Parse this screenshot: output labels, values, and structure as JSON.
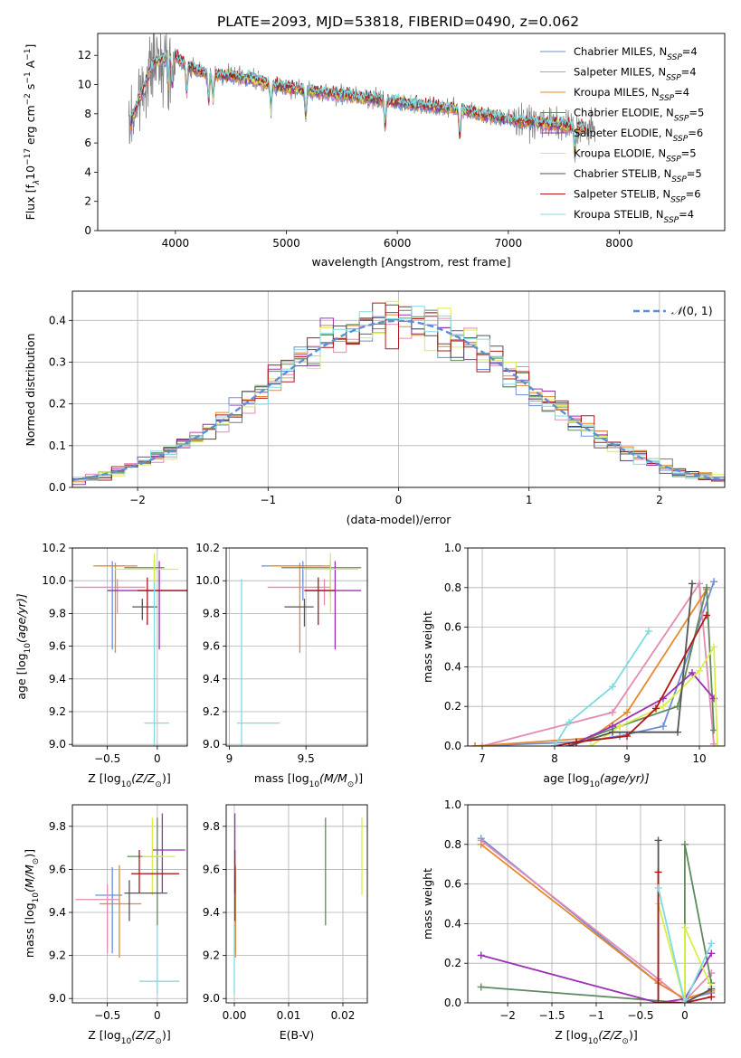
{
  "figure": {
    "title": "PLATE=2093, MJD=53818, FIBERID=0490, z=0.062"
  },
  "colors": {
    "Chabrier MILES": "#6a8fd8",
    "Salpeter MILES": "#e48ab4",
    "Kroupa MILES": "#e8882a",
    "Chabrier ELODIE": "#5f8a5f",
    "Salpeter ELODIE": "#9b30b5",
    "Kroupa ELODIE": "#d9ee4c",
    "Chabrier STELIB": "#555555",
    "Salpeter STELIB": "#b01818",
    "Kroupa STELIB": "#7fdbe0",
    "data": "#808080",
    "normal": "#5b8fd6"
  },
  "chart_data": [
    {
      "id": "spectrum",
      "type": "line",
      "xlabel": "wavelength [Angstrom, rest frame]",
      "ylabel_parts": [
        "Flux [f",
        "λ",
        "10",
        "−17",
        " erg cm",
        "−2",
        " s",
        "−1",
        " A",
        "−1",
        "]"
      ],
      "xlim": [
        3300,
        8950
      ],
      "ylim": [
        0,
        13.5
      ],
      "xticks": [
        4000,
        5000,
        6000,
        7000,
        8000
      ],
      "yticks": [
        0,
        2,
        4,
        6,
        8,
        10,
        12
      ],
      "grid": false,
      "legend": "top-right",
      "continuum": [
        [
          3600,
          7.5
        ],
        [
          3700,
          9.5
        ],
        [
          3800,
          11.5
        ],
        [
          3900,
          11.8
        ],
        [
          4000,
          12.0
        ],
        [
          4100,
          11.3
        ],
        [
          4300,
          10.7
        ],
        [
          4500,
          10.6
        ],
        [
          4700,
          10.4
        ],
        [
          4860,
          10.0
        ],
        [
          5000,
          9.8
        ],
        [
          5200,
          9.6
        ],
        [
          5500,
          9.3
        ],
        [
          5800,
          9.0
        ],
        [
          6200,
          8.6
        ],
        [
          6560,
          8.3
        ],
        [
          7000,
          7.6
        ],
        [
          7400,
          7.3
        ],
        [
          7700,
          7.0
        ]
      ],
      "series": [
        {
          "name": "Chabrier MILES",
          "nssp": "4"
        },
        {
          "name": "Salpeter MILES",
          "nssp": "4"
        },
        {
          "name": "Kroupa MILES",
          "nssp": "4"
        },
        {
          "name": "Chabrier ELODIE",
          "nssp": "5"
        },
        {
          "name": "Salpeter ELODIE",
          "nssp": "6"
        },
        {
          "name": "Kroupa ELODIE",
          "nssp": "5"
        },
        {
          "name": "Chabrier STELIB",
          "nssp": "5"
        },
        {
          "name": "Salpeter STELIB",
          "nssp": "6"
        },
        {
          "name": "Kroupa STELIB",
          "nssp": "4"
        }
      ]
    },
    {
      "id": "residuals",
      "type": "histogram",
      "xlabel": "(data-model)/error",
      "ylabel": "Normed distribution",
      "xlim": [
        -2.5,
        2.5
      ],
      "ylim": [
        0,
        0.47
      ],
      "xticks": [
        -2,
        -1,
        0,
        1,
        2
      ],
      "yticks": [
        0.0,
        0.1,
        0.2,
        0.3,
        0.4
      ],
      "grid": true,
      "legend": "top-right",
      "normal_label_parts": [
        "𝒩",
        "(0, 1)"
      ]
    },
    {
      "id": "age-vs-Z",
      "type": "errorbar",
      "xlabel_parts": [
        "Z [log",
        "10",
        "(Z/Z",
        "⊙",
        ")]"
      ],
      "ylabel_parts": [
        "age  [log",
        "10",
        "(age/yr)]"
      ],
      "xlim": [
        -0.85,
        0.3
      ],
      "ylim": [
        8.99,
        10.2
      ],
      "xticks": [
        -0.5,
        0.0
      ],
      "yticks": [
        9.0,
        9.2,
        9.4,
        9.6,
        9.8,
        10.0,
        10.2
      ],
      "grid": true,
      "points": [
        {
          "name": "Chabrier MILES",
          "x": -0.45,
          "xerr": [
            0.17,
            0.12
          ],
          "y": 10.09,
          "yerr": [
            0.51,
            0.03
          ]
        },
        {
          "name": "Salpeter MILES",
          "x": -0.4,
          "xerr": [
            0.43,
            0.28
          ],
          "y": 9.96,
          "yerr": [
            0.16,
            0.05
          ]
        },
        {
          "name": "Kroupa MILES",
          "x": -0.42,
          "xerr": [
            0.22,
            0.22
          ],
          "y": 10.09,
          "yerr": [
            0.53,
            0.02
          ]
        },
        {
          "name": "Chabrier ELODIE",
          "x": -0.03,
          "xerr": [
            0.3,
            0.1
          ],
          "y": 10.08,
          "yerr": [
            0.14,
            0.05
          ]
        },
        {
          "name": "Salpeter ELODIE",
          "x": 0.02,
          "xerr": [
            0.52,
            0.28
          ],
          "y": 9.94,
          "yerr": [
            0.36,
            0.18
          ]
        },
        {
          "name": "Kroupa ELODIE",
          "x": -0.03,
          "xerr": [
            0.4,
            0.24
          ],
          "y": 10.07,
          "yerr": [
            0.27,
            0.1
          ]
        },
        {
          "name": "Chabrier STELIB",
          "x": -0.15,
          "xerr": [
            0.1,
            0.15
          ],
          "y": 9.84,
          "yerr": [
            0.08,
            0.05
          ]
        },
        {
          "name": "Salpeter STELIB",
          "x": -0.1,
          "xerr": [
            0.1,
            0.4
          ],
          "y": 9.94,
          "yerr": [
            0.21,
            0.08
          ]
        },
        {
          "name": "Kroupa STELIB",
          "x": -0.03,
          "xerr": [
            0.1,
            0.15
          ],
          "y": 9.13,
          "yerr": [
            0.14,
            0.86
          ]
        }
      ]
    },
    {
      "id": "age-vs-mass",
      "type": "errorbar",
      "xlabel_parts": [
        "mass [log",
        "10",
        "(M/M",
        "⊙",
        ")]"
      ],
      "ylabel_parts": [],
      "xlim": [
        8.98,
        9.9
      ],
      "ylim": [
        8.99,
        10.2
      ],
      "xticks": [
        9.0,
        9.5
      ],
      "yticks": [
        9.0,
        9.2,
        9.4,
        9.6,
        9.8,
        10.0,
        10.2
      ],
      "grid": true,
      "points": [
        {
          "name": "Chabrier MILES",
          "x": 9.48,
          "xerr": [
            0.27,
            0.13
          ],
          "y": 10.09,
          "yerr": [
            0.21,
            0.03
          ]
        },
        {
          "name": "Salpeter MILES",
          "x": 9.62,
          "xerr": [
            0.37,
            0.04
          ],
          "y": 9.96,
          "yerr": [
            0.11,
            0.05
          ]
        },
        {
          "name": "Kroupa MILES",
          "x": 9.46,
          "xerr": [
            0.2,
            0.2
          ],
          "y": 10.09,
          "yerr": [
            0.53,
            0.02
          ]
        },
        {
          "name": "Chabrier ELODIE",
          "x": 9.66,
          "xerr": [
            0.32,
            0.2
          ],
          "y": 10.08,
          "yerr": [
            0.18,
            0.05
          ]
        },
        {
          "name": "Salpeter ELODIE",
          "x": 9.69,
          "xerr": [
            0.2,
            0.17
          ],
          "y": 9.94,
          "yerr": [
            0.36,
            0.18
          ]
        },
        {
          "name": "Kroupa ELODIE",
          "x": 9.66,
          "xerr": [
            0.18,
            0.18
          ],
          "y": 10.07,
          "yerr": [
            0.27,
            0.1
          ]
        },
        {
          "name": "Chabrier STELIB",
          "x": 9.49,
          "xerr": [
            0.13,
            0.06
          ],
          "y": 9.84,
          "yerr": [
            0.12,
            0.05
          ]
        },
        {
          "name": "Salpeter STELIB",
          "x": 9.58,
          "xerr": [
            0.09,
            0.11
          ],
          "y": 9.94,
          "yerr": [
            0.21,
            0.08
          ]
        },
        {
          "name": "Kroupa STELIB",
          "x": 9.08,
          "xerr": [
            0.03,
            0.25
          ],
          "y": 9.13,
          "yerr": [
            0.14,
            0.88
          ]
        }
      ]
    },
    {
      "id": "mass-weight-vs-age",
      "type": "line",
      "xlabel_parts": [
        "age  [log",
        "10",
        "(age/yr)]"
      ],
      "ylabel": "mass weight",
      "xlim": [
        6.8,
        10.35
      ],
      "ylim": [
        0,
        1
      ],
      "xticks": [
        7,
        8,
        9,
        10
      ],
      "yticks": [
        0.0,
        0.2,
        0.4,
        0.6,
        0.8,
        1.0
      ],
      "grid": true,
      "series": [
        {
          "name": "Chabrier MILES",
          "x": [
            6.9,
            8.3,
            8.9,
            9.5,
            10.2
          ],
          "y": [
            0.0,
            0.02,
            0.05,
            0.1,
            0.83
          ]
        },
        {
          "name": "Salpeter MILES",
          "x": [
            7.0,
            8.8,
            10.0,
            10.2
          ],
          "y": [
            0.0,
            0.17,
            0.82,
            0.01
          ]
        },
        {
          "name": "Kroupa MILES",
          "x": [
            6.9,
            8.5,
            9.0,
            10.1
          ],
          "y": [
            0.0,
            0.04,
            0.17,
            0.79
          ]
        },
        {
          "name": "Chabrier ELODIE",
          "x": [
            8.3,
            8.9,
            9.7,
            10.1,
            10.2
          ],
          "y": [
            0.02,
            0.1,
            0.2,
            0.8,
            0.08
          ]
        },
        {
          "name": "Salpeter ELODIE",
          "x": [
            8.2,
            8.8,
            9.5,
            9.9,
            10.2
          ],
          "y": [
            0.0,
            0.1,
            0.24,
            0.37,
            0.24
          ]
        },
        {
          "name": "Kroupa ELODIE",
          "x": [
            8.5,
            8.9,
            9.5,
            10.0,
            10.2,
            10.25
          ],
          "y": [
            0.0,
            0.1,
            0.2,
            0.38,
            0.5,
            0.0
          ]
        },
        {
          "name": "Chabrier STELIB",
          "x": [
            8.2,
            8.8,
            9.7,
            9.9
          ],
          "y": [
            0.0,
            0.07,
            0.07,
            0.82
          ]
        },
        {
          "name": "Salpeter STELIB",
          "x": [
            8.0,
            8.3,
            9.0,
            9.4,
            10.1
          ],
          "y": [
            0.0,
            0.02,
            0.05,
            0.19,
            0.66
          ]
        },
        {
          "name": "Kroupa STELIB",
          "x": [
            8.0,
            8.2,
            8.8,
            9.3
          ],
          "y": [
            0.0,
            0.12,
            0.3,
            0.58
          ]
        }
      ]
    },
    {
      "id": "mass-vs-Z",
      "type": "errorbar",
      "xlabel_parts": [
        "Z [log",
        "10",
        "(Z/Z",
        "⊙",
        ")]"
      ],
      "ylabel_parts": [
        "mass [log",
        "10",
        "(M/M",
        "⊙",
        ")]"
      ],
      "xlim": [
        -0.85,
        0.3
      ],
      "ylim": [
        8.98,
        9.9
      ],
      "xticks": [
        -0.5,
        0.0
      ],
      "yticks": [
        9.0,
        9.2,
        9.4,
        9.6,
        9.8
      ],
      "grid": true,
      "points": [
        {
          "name": "Chabrier MILES",
          "x": -0.45,
          "xerr": [
            0.17,
            0.1
          ],
          "y": 9.48,
          "yerr": [
            0.27,
            0.13
          ]
        },
        {
          "name": "Salpeter MILES",
          "x": -0.5,
          "xerr": [
            0.32,
            0.12
          ],
          "y": 9.46,
          "yerr": [
            0.25,
            0.07
          ]
        },
        {
          "name": "Kroupa MILES",
          "x": -0.38,
          "xerr": [
            0.2,
            0.22
          ],
          "y": 9.44,
          "yerr": [
            0.25,
            0.18
          ]
        },
        {
          "name": "Chabrier ELODIE",
          "x": 0.0,
          "xerr": [
            0.3,
            0.05
          ],
          "y": 9.66,
          "yerr": [
            0.32,
            0.18
          ]
        },
        {
          "name": "Salpeter ELODIE",
          "x": 0.05,
          "xerr": [
            0.1,
            0.23
          ],
          "y": 9.69,
          "yerr": [
            0.2,
            0.17
          ]
        },
        {
          "name": "Kroupa ELODIE",
          "x": -0.05,
          "xerr": [
            0.1,
            0.23
          ],
          "y": 9.66,
          "yerr": [
            0.18,
            0.18
          ]
        },
        {
          "name": "Chabrier STELIB",
          "x": -0.28,
          "xerr": [
            0.05,
            0.38
          ],
          "y": 9.49,
          "yerr": [
            0.13,
            0.06
          ]
        },
        {
          "name": "Salpeter STELIB",
          "x": -0.18,
          "xerr": [
            0.08,
            0.4
          ],
          "y": 9.58,
          "yerr": [
            0.09,
            0.11
          ]
        },
        {
          "name": "Kroupa STELIB",
          "x": 0.0,
          "xerr": [
            0.18,
            0.22
          ],
          "y": 9.08,
          "yerr": [
            0.06,
            0.26
          ]
        }
      ]
    },
    {
      "id": "mass-vs-EBV",
      "type": "errorbar",
      "xlabel": "E(B-V)",
      "xlim": [
        -0.0015,
        0.0245
      ],
      "ylim": [
        8.98,
        9.9
      ],
      "xticks": [
        0.0,
        0.01,
        0.02
      ],
      "xtick_labels": [
        "0.00",
        "0.01",
        "0.02"
      ],
      "yticks": [
        9.0,
        9.2,
        9.4,
        9.6,
        9.8
      ],
      "grid": true,
      "points": [
        {
          "name": "Chabrier MILES",
          "x": 0.0002,
          "y": 9.48,
          "yerr": [
            0.27,
            0.13
          ]
        },
        {
          "name": "Salpeter MILES",
          "x": 0.0002,
          "y": 9.46,
          "yerr": [
            0.25,
            0.07
          ]
        },
        {
          "name": "Kroupa MILES",
          "x": 0.0002,
          "y": 9.44,
          "yerr": [
            0.25,
            0.18
          ]
        },
        {
          "name": "Chabrier ELODIE",
          "x": 0.0168,
          "y": 9.66,
          "yerr": [
            0.32,
            0.18
          ]
        },
        {
          "name": "Salpeter ELODIE",
          "x": 0.0001,
          "y": 9.69,
          "yerr": [
            0.2,
            0.17
          ]
        },
        {
          "name": "Kroupa ELODIE",
          "x": 0.0235,
          "y": 9.66,
          "yerr": [
            0.18,
            0.18
          ]
        },
        {
          "name": "Chabrier STELIB",
          "x": 0.0001,
          "y": 9.49,
          "yerr": [
            0.13,
            0.06
          ]
        },
        {
          "name": "Salpeter STELIB",
          "x": 0.0001,
          "y": 9.58,
          "yerr": [
            0.09,
            0.11
          ]
        },
        {
          "name": "Kroupa STELIB",
          "x": 0.0,
          "y": 9.08,
          "yerr": [
            0.06,
            0.26
          ]
        }
      ]
    },
    {
      "id": "mass-weight-vs-Z",
      "type": "line",
      "xlabel_parts": [
        "Z [log",
        "10",
        "(Z/Z",
        "⊙",
        ")]"
      ],
      "ylabel": "mass weight",
      "xlim": [
        -2.45,
        0.45
      ],
      "ylim": [
        0,
        1
      ],
      "xticks": [
        -2.0,
        -1.5,
        -1.0,
        -0.5,
        0.0
      ],
      "yticks": [
        0.0,
        0.2,
        0.4,
        0.6,
        0.8,
        1.0
      ],
      "grid": true,
      "series": [
        {
          "name": "Chabrier MILES",
          "x": [
            -2.3,
            -0.3,
            0.0,
            0.3
          ],
          "y": [
            0.83,
            0.1,
            0.02,
            0.05
          ]
        },
        {
          "name": "Salpeter MILES",
          "x": [
            -2.3,
            -0.3,
            0.0,
            0.3
          ],
          "y": [
            0.82,
            0.12,
            0.01,
            0.15
          ]
        },
        {
          "name": "Kroupa MILES",
          "x": [
            -2.3,
            -0.3,
            0.0,
            0.3
          ],
          "y": [
            0.8,
            0.1,
            0.02,
            0.06
          ]
        },
        {
          "name": "Chabrier ELODIE",
          "x": [
            -2.3,
            0.0,
            0.0,
            0.3
          ],
          "y": [
            0.08,
            0.0,
            0.8,
            0.1
          ]
        },
        {
          "name": "Salpeter ELODIE",
          "x": [
            -2.3,
            -0.3,
            0.0,
            0.3
          ],
          "y": [
            0.24,
            0.0,
            0.02,
            0.25
          ]
        },
        {
          "name": "Kroupa ELODIE",
          "x": [
            -0.3,
            0.0,
            0.0,
            0.3
          ],
          "y": [
            0.5,
            0.0,
            0.38,
            0.08
          ]
        },
        {
          "name": "Chabrier STELIB",
          "x": [
            -0.3,
            -0.3,
            0.0,
            0.3
          ],
          "y": [
            0.82,
            0.0,
            0.0,
            0.07
          ]
        },
        {
          "name": "Salpeter STELIB",
          "x": [
            -0.3,
            -0.3,
            0.0,
            0.3
          ],
          "y": [
            0.66,
            0.0,
            0.0,
            0.03
          ]
        },
        {
          "name": "Kroupa STELIB",
          "x": [
            -0.3,
            0.0,
            0.3
          ],
          "y": [
            0.58,
            0.0,
            0.3
          ]
        }
      ]
    }
  ]
}
